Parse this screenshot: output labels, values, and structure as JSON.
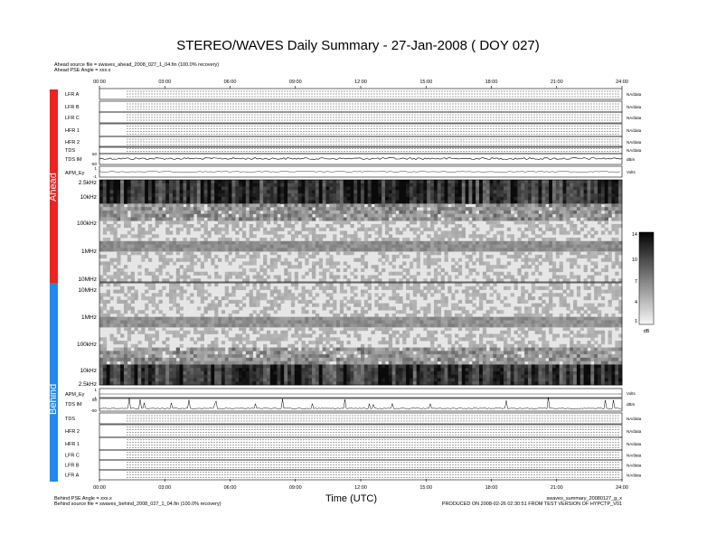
{
  "title": "STEREO/WAVES Daily Summary - 27-Jan-2008 ( DOY 027)",
  "ahead_source": "Ahead source file = swaves_ahead_2008_027_1_04.fin (100.0% recovery)",
  "ahead_pse": "Ahead PSE Angle = xxx.x",
  "behind_pse": "Behind PSE Angle = xxx.x",
  "behind_source": "Behind source file = swaves_behind_2008_027_1_04.fin (100.0% recovery)",
  "x_axis_title": "Time (UTC)",
  "footer_file": "swaves_summary_20080127_g_x",
  "footer_produced": "PRODUCED ON 2008-02-26 02:30:51 FROM TEST VERSION OF HYPCTP_V01",
  "spacecraft": {
    "ahead": "Ahead",
    "behind": "Behind"
  },
  "colors": {
    "ahead": "#ee2222",
    "behind": "#2288ee"
  },
  "chart_data": {
    "type": "heatmap",
    "x": {
      "label": "Time (UTC)",
      "range": [
        "00:00",
        "24:00"
      ],
      "ticks": [
        "00:00",
        "03:00",
        "06:00",
        "09:00",
        "12:00",
        "15:00",
        "18:00",
        "21:00",
        "24:00"
      ]
    },
    "ahead_rows": [
      {
        "label": "LFR A",
        "right": "NA/data"
      },
      {
        "label": "LFR B",
        "right": "NA/data"
      },
      {
        "label": "LFR C",
        "right": "NA/data"
      },
      {
        "label": "HFR 1",
        "right": "NA/data"
      },
      {
        "label": "HFR 2",
        "right": "NA/data"
      },
      {
        "label": "TDS",
        "right": "NA/data"
      },
      {
        "label": "TDS IM",
        "right": "dBm"
      },
      {
        "label": "APM_Ey",
        "right": "Volts"
      }
    ],
    "behind_rows": [
      {
        "label": "APM_Ey",
        "right": "Volts"
      },
      {
        "label": "TDS IM",
        "right": "dBm"
      },
      {
        "label": "TDS",
        "right": "NA/data"
      },
      {
        "label": "HFR 2",
        "right": "NA/data"
      },
      {
        "label": "HFR 1",
        "right": "NA/data"
      },
      {
        "label": "LFR C",
        "right": "NA/data"
      },
      {
        "label": "LFR B",
        "right": "NA/data"
      },
      {
        "label": "LFR A",
        "right": "NA/data"
      }
    ],
    "ahead_freq_ticks": [
      "2.5kHz",
      "10kHz",
      "100kHz",
      "1MHz",
      "10MHz"
    ],
    "behind_freq_ticks": [
      "10MHz",
      "1MHz",
      "100kHz",
      "10kHz",
      "2.5kHz"
    ],
    "apm_ticks": [
      "1",
      "-1"
    ],
    "tds_ticks": [
      "50",
      "-50"
    ],
    "colorbar": {
      "ticks": [
        "14",
        "10",
        "7",
        "4",
        "1"
      ],
      "unit": "dB",
      "range": [
        1,
        14
      ]
    }
  }
}
